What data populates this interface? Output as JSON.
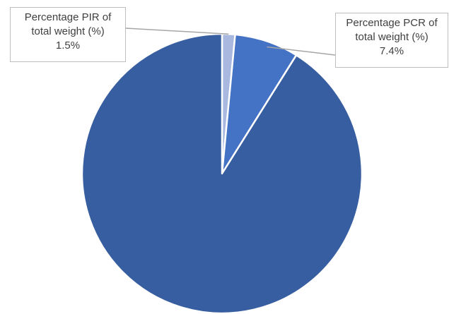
{
  "chart_data": {
    "type": "pie",
    "title": "",
    "slices": [
      {
        "label_lines": [
          "Percentage PIR of",
          "total weight (%)"
        ],
        "value": 1.5,
        "value_label": "1.5%",
        "color": "#a9b8de"
      },
      {
        "label_lines": [
          "Percentage PCR of",
          "total weight (%)"
        ],
        "value": 7.4,
        "value_label": "7.4%",
        "color": "#4472c4"
      },
      {
        "label_lines": [],
        "value": 91.1,
        "value_label": "",
        "color": "#365ea0"
      }
    ],
    "start_angle_deg": 0,
    "direction": "clockwise",
    "legend": "none"
  }
}
